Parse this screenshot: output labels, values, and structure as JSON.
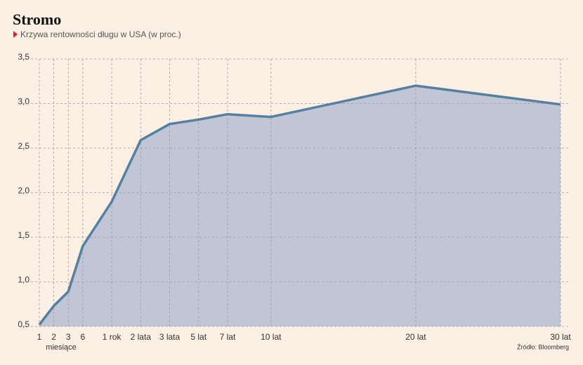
{
  "chart_data": {
    "type": "area",
    "title": "Stromo",
    "subtitle": "Krzywa rentowności długu w USA (w proc.)",
    "categories": [
      "1",
      "2",
      "3",
      "6",
      "1 rok",
      "2 lata",
      "3 lata",
      "5 lat",
      "7 lat",
      "10 lat",
      "20 lat",
      "30 lat"
    ],
    "x_annotation": "miesiące",
    "values": [
      0.52,
      0.73,
      0.89,
      1.4,
      1.9,
      2.59,
      2.77,
      2.82,
      2.88,
      2.85,
      3.2,
      2.99
    ],
    "color": "#567fa0",
    "fill": "#c0c6d6",
    "ylim": [
      0.5,
      3.5
    ],
    "yticks": [
      {
        "value": 0.5,
        "label": "0,5"
      },
      {
        "value": 1.0,
        "label": "1,0"
      },
      {
        "value": 1.5,
        "label": "1,5"
      },
      {
        "value": 2.0,
        "label": "2,0"
      },
      {
        "value": 2.5,
        "label": "2,5"
      },
      {
        "value": 3.0,
        "label": "3,0"
      },
      {
        "value": 3.5,
        "label": "3,5"
      }
    ],
    "grid": true,
    "source": "Źródło: Bloomberg"
  }
}
